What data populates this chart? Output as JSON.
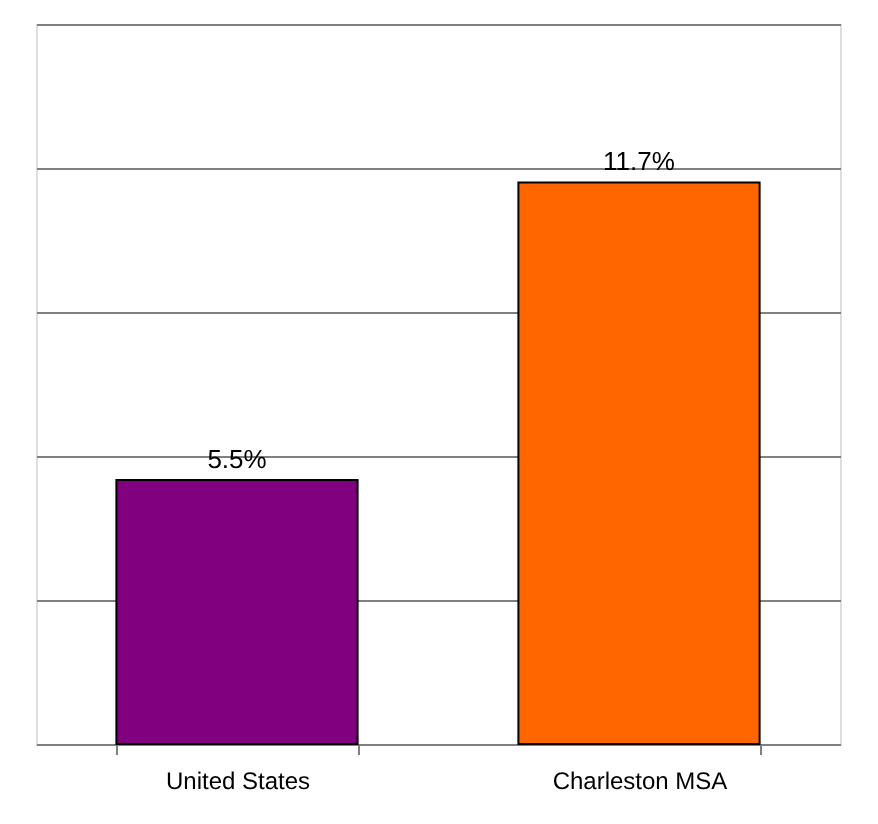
{
  "chart_data": {
    "type": "bar",
    "categories": [
      "United States",
      "Charleston MSA"
    ],
    "values": [
      5.5,
      11.7
    ],
    "colors": [
      "#800080",
      "#ff6600"
    ],
    "value_labels": [
      "5.5%",
      "11.7%"
    ],
    "ylim": [
      0,
      15
    ],
    "yticks": [
      {
        "value": 0,
        "label": null
      },
      {
        "value": 3,
        "label": null
      },
      {
        "value": 6,
        "label": null
      },
      {
        "value": 9,
        "label": null
      },
      {
        "value": 12,
        "label": null
      },
      {
        "value": 15,
        "label": null
      }
    ],
    "grid": "y",
    "tick_labels": "x"
  }
}
